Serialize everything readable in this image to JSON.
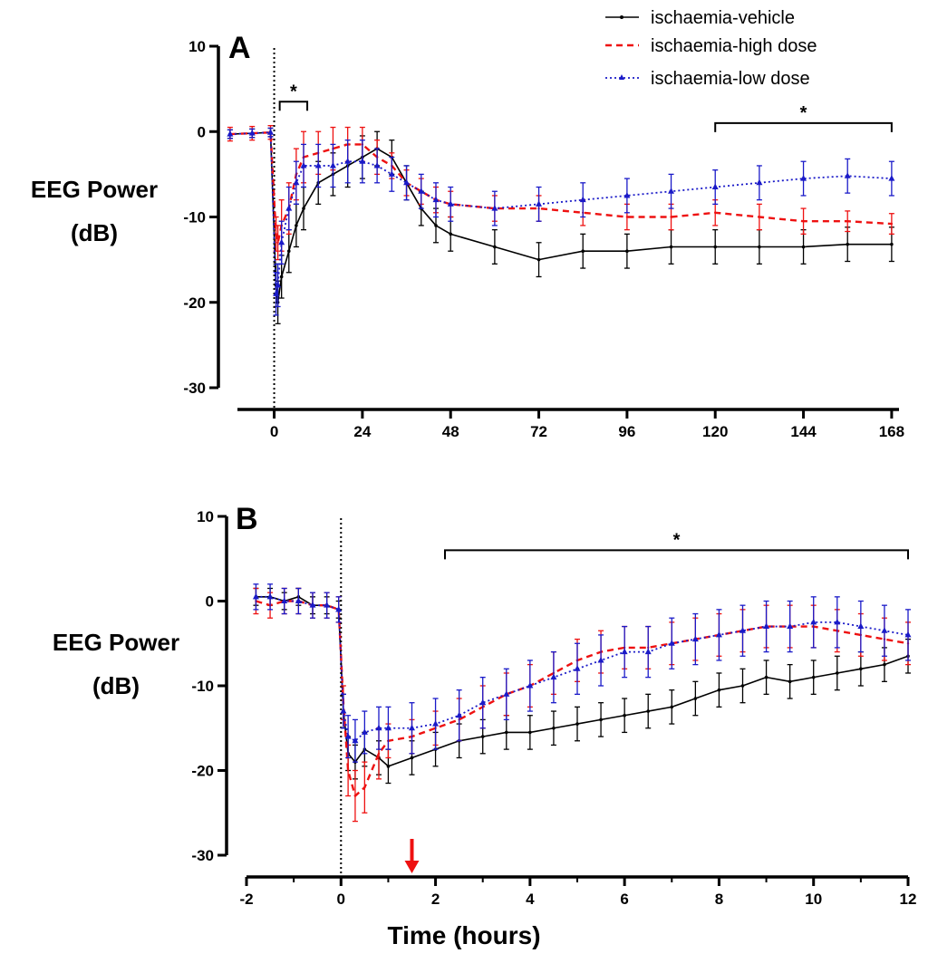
{
  "colors": {
    "vehicle": "#000000",
    "high_dose": "#ee1111",
    "low_dose": "#1a1ac8",
    "arrow": "#ee1111"
  },
  "legend": [
    {
      "name": "ischaemia-vehicle",
      "color": "#000000",
      "style": "solid"
    },
    {
      "name": "ischaemia-high dose",
      "color": "#ee1111",
      "style": "dashed"
    },
    {
      "name": "ischaemia-low dose",
      "color": "#1a1ac8",
      "style": "dotted"
    }
  ],
  "chart_data": [
    {
      "type": "line",
      "panel": "A",
      "ylabel_line1": "EEG Power",
      "ylabel_line2": "(dB)",
      "xlabel": "",
      "xlim": [
        -10,
        170
      ],
      "ylim": [
        -30,
        10
      ],
      "xticks": [
        0,
        24,
        48,
        72,
        96,
        120,
        144,
        168
      ],
      "xtick_labels": [
        "0",
        "24",
        "48",
        "72",
        "96",
        "120",
        "144",
        "168"
      ],
      "yticks": [
        10,
        0,
        -10,
        -20,
        -30
      ],
      "ytick_labels": [
        "10",
        "0",
        "-10",
        "-20",
        "-30"
      ],
      "vline_x": 0,
      "significance": [
        {
          "x_start": 1.5,
          "x_end": 9,
          "y": 3.5,
          "label": "*"
        },
        {
          "x_start": 120,
          "x_end": 168,
          "y": 1,
          "label": "*"
        }
      ],
      "series": [
        {
          "name": "ischaemia-vehicle",
          "x": [
            -12,
            -6,
            -1,
            0.5,
            1,
            2,
            4,
            6,
            8,
            12,
            16,
            20,
            24,
            28,
            32,
            36,
            40,
            44,
            48,
            60,
            72,
            84,
            96,
            108,
            120,
            132,
            144,
            156,
            168
          ],
          "y": [
            -0.3,
            -0.2,
            -0.1,
            -18,
            -20,
            -17,
            -14,
            -11,
            -9,
            -6,
            -5,
            -4,
            -3,
            -2,
            -3,
            -6,
            -9,
            -11,
            -12,
            -13.5,
            -15,
            -14,
            -14,
            -13.5,
            -13.5,
            -13.5,
            -13.5,
            -13.2,
            -13.2
          ],
          "err": [
            0.5,
            0.5,
            0.5,
            2.5,
            2.5,
            2.5,
            2.5,
            2.5,
            2.5,
            2.5,
            2.5,
            2.5,
            2.5,
            2,
            2,
            2,
            2,
            2,
            2,
            2,
            2,
            2,
            2,
            2,
            2,
            2,
            2,
            2,
            2
          ]
        },
        {
          "name": "ischaemia-high dose",
          "x": [
            -12,
            -6,
            -1,
            0.5,
            1,
            2,
            4,
            6,
            8,
            12,
            16,
            20,
            24,
            28,
            32,
            36,
            40,
            44,
            48,
            60,
            72,
            84,
            96,
            108,
            120,
            132,
            144,
            156,
            168
          ],
          "y": [
            -0.3,
            -0.2,
            -0.1,
            -12,
            -13,
            -11,
            -9,
            -5,
            -3,
            -2.5,
            -2,
            -1.5,
            -1.5,
            -3,
            -4,
            -6,
            -7,
            -8,
            -8.5,
            -9,
            -9,
            -9.5,
            -10,
            -10,
            -9.5,
            -10,
            -10.5,
            -10.5,
            -10.8
          ],
          "err": [
            0.8,
            0.8,
            0.8,
            2,
            2,
            3,
            3,
            3,
            3,
            2.5,
            2.5,
            2,
            2,
            2,
            1.5,
            1.5,
            1.5,
            1.5,
            1.5,
            1.5,
            1.5,
            1.5,
            1.5,
            1.5,
            1.5,
            1.5,
            1.5,
            1.2,
            1.2
          ]
        },
        {
          "name": "ischaemia-low dose",
          "x": [
            -12,
            -6,
            -1,
            0.5,
            1,
            2,
            4,
            6,
            8,
            12,
            16,
            20,
            24,
            28,
            32,
            36,
            40,
            44,
            48,
            60,
            72,
            84,
            96,
            108,
            120,
            132,
            144,
            156,
            168
          ],
          "y": [
            -0.3,
            -0.2,
            -0.1,
            -19,
            -18,
            -13,
            -9,
            -6,
            -4,
            -4,
            -4,
            -3.5,
            -3.5,
            -4,
            -5,
            -6,
            -7,
            -8,
            -8.5,
            -9,
            -8.5,
            -8,
            -7.5,
            -7,
            -6.5,
            -6,
            -5.5,
            -5.2,
            -5.5
          ],
          "err": [
            0.5,
            0.5,
            0.5,
            2.5,
            2.5,
            2.5,
            2.5,
            2.5,
            2.5,
            2.5,
            2.5,
            2.5,
            2.5,
            2,
            2,
            2,
            2,
            2,
            2,
            2,
            2,
            2,
            2,
            2,
            2,
            2,
            2,
            2,
            2
          ]
        }
      ]
    },
    {
      "type": "line",
      "panel": "B",
      "ylabel_line1": "EEG Power",
      "ylabel_line2": "(dB)",
      "xlabel": "Time (hours)",
      "xlim": [
        -2,
        12
      ],
      "ylim": [
        -30,
        10
      ],
      "xticks": [
        -2,
        0,
        2,
        4,
        6,
        8,
        10,
        12
      ],
      "xtick_labels": [
        "-2",
        "0",
        "2",
        "4",
        "6",
        "8",
        "10",
        "12"
      ],
      "yticks": [
        10,
        0,
        -10,
        -20,
        -30
      ],
      "ytick_labels": [
        "10",
        "0",
        "-10",
        "-20",
        "-30"
      ],
      "vline_x": 0,
      "arrow_x": 1.5,
      "significance": [
        {
          "x_start": 2.2,
          "x_end": 12,
          "y": 6,
          "label": "*"
        }
      ],
      "series": [
        {
          "name": "ischaemia-vehicle",
          "x": [
            -1.8,
            -1.5,
            -1.2,
            -0.9,
            -0.6,
            -0.3,
            -0.05,
            0.05,
            0.15,
            0.3,
            0.5,
            0.8,
            1,
            1.5,
            2,
            2.5,
            3,
            3.5,
            4,
            4.5,
            5,
            5.5,
            6,
            6.5,
            7,
            7.5,
            8,
            8.5,
            9,
            9.5,
            10,
            10.5,
            11,
            11.5,
            12
          ],
          "y": [
            0.5,
            0.5,
            0,
            0.5,
            -0.5,
            -0.5,
            -1,
            -13,
            -18,
            -19,
            -17.5,
            -18.5,
            -19.5,
            -18.5,
            -17.5,
            -16.5,
            -16,
            -15.5,
            -15.5,
            -15,
            -14.5,
            -14,
            -13.5,
            -13,
            -12.5,
            -11.5,
            -10.5,
            -10,
            -9,
            -9.5,
            -9,
            -8.5,
            -8,
            -7.5,
            -6.5
          ],
          "err": [
            1,
            1,
            1,
            1,
            1,
            1,
            1,
            2,
            2,
            2,
            2,
            2,
            2,
            2,
            2,
            2,
            2,
            2,
            2,
            2,
            2,
            2,
            2,
            2,
            2,
            2,
            2,
            2,
            2,
            2,
            2,
            2,
            2,
            2,
            2
          ]
        },
        {
          "name": "ischaemia-high dose",
          "x": [
            -1.8,
            -1.5,
            -1.2,
            -0.9,
            -0.6,
            -0.3,
            -0.05,
            0.05,
            0.15,
            0.3,
            0.5,
            0.8,
            1,
            1.5,
            2,
            2.5,
            3,
            3.5,
            4,
            4.5,
            5,
            5.5,
            6,
            6.5,
            7,
            7.5,
            8,
            8.5,
            9,
            9.5,
            10,
            10.5,
            11,
            11.5,
            12
          ],
          "y": [
            0,
            -0.5,
            0,
            0,
            -0.5,
            -0.5,
            -1,
            -12,
            -20,
            -23,
            -22,
            -18,
            -16.5,
            -16,
            -15,
            -14,
            -12.5,
            -11,
            -10,
            -8.5,
            -7,
            -6,
            -5.5,
            -5.5,
            -5,
            -4.5,
            -4,
            -3.5,
            -3,
            -3,
            -3,
            -3.5,
            -4,
            -4.5,
            -5
          ],
          "err": [
            1.5,
            1.5,
            1.5,
            1.5,
            1.5,
            1.5,
            1.5,
            2,
            3,
            3,
            3,
            3,
            2,
            2,
            2,
            2.5,
            2.5,
            2.5,
            2.5,
            2.5,
            2.5,
            2.5,
            2.5,
            2.5,
            2.5,
            2.5,
            2.5,
            2.5,
            2.5,
            2.5,
            2.5,
            2.5,
            2.5,
            2.5,
            2.5
          ]
        },
        {
          "name": "ischaemia-low dose",
          "x": [
            -1.8,
            -1.5,
            -1.2,
            -0.9,
            -0.6,
            -0.3,
            -0.05,
            0.05,
            0.15,
            0.3,
            0.5,
            0.8,
            1,
            1.5,
            2,
            2.5,
            3,
            3.5,
            4,
            4.5,
            5,
            5.5,
            6,
            6.5,
            7,
            7.5,
            8,
            8.5,
            9,
            9.5,
            10,
            10.5,
            11,
            11.5,
            12
          ],
          "y": [
            0.5,
            0.5,
            0,
            0,
            -0.5,
            -0.5,
            -1,
            -13,
            -16,
            -16.5,
            -15.5,
            -15,
            -15,
            -15,
            -14.5,
            -13.5,
            -12,
            -11,
            -10,
            -9,
            -8,
            -7,
            -6,
            -6,
            -5,
            -4.5,
            -4,
            -3.5,
            -3,
            -3,
            -2.5,
            -2.5,
            -3,
            -3.5,
            -4
          ],
          "err": [
            1.5,
            1.5,
            1.5,
            1.5,
            1.5,
            1.5,
            1.5,
            2,
            2.5,
            2.5,
            2.5,
            2.5,
            2.5,
            3,
            3,
            3,
            3,
            3,
            3,
            3,
            3,
            3,
            3,
            3,
            3,
            3,
            3,
            3,
            3,
            3,
            3,
            3,
            3,
            3,
            3
          ]
        }
      ]
    }
  ]
}
